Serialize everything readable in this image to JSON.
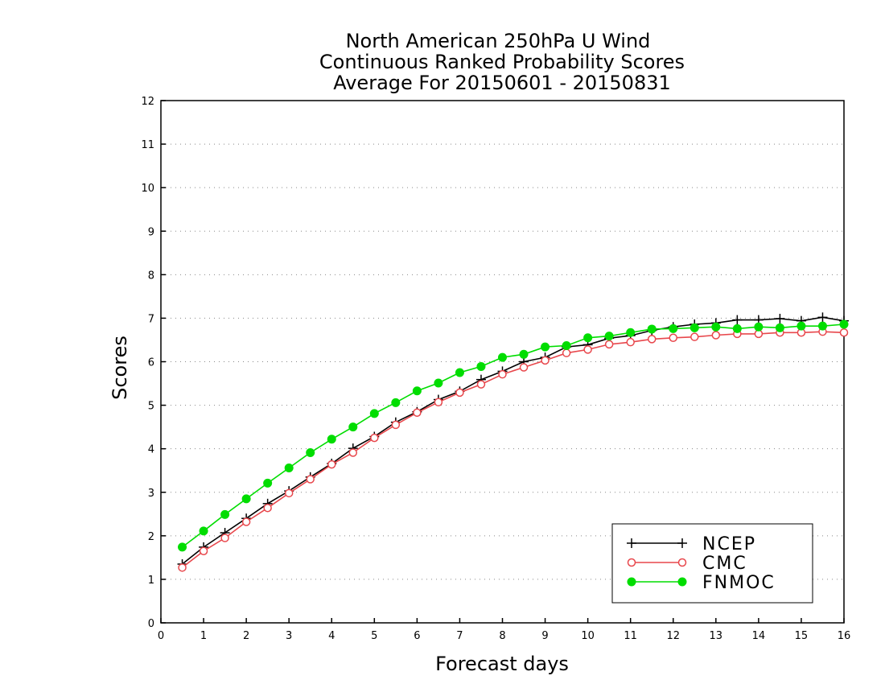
{
  "chart_data": {
    "type": "line",
    "title": [
      "North American 250hPa U Wind",
      "Continuous Ranked Probability Scores",
      "Average For 20150601 - 20150831"
    ],
    "xlabel": "Forecast days",
    "ylabel": "Scores",
    "xlim": [
      0,
      16
    ],
    "ylim": [
      0,
      12
    ],
    "xticks": [
      "0",
      "1",
      "2",
      "3",
      "4",
      "5",
      "6",
      "7",
      "8",
      "9",
      "10",
      "11",
      "12",
      "13",
      "14",
      "15",
      "16"
    ],
    "yticks": [
      "0",
      "1",
      "2",
      "3",
      "4",
      "5",
      "6",
      "7",
      "8",
      "9",
      "10",
      "11",
      "12"
    ],
    "grid": true,
    "legend_position": "bottom-right",
    "x": [
      0.5,
      1,
      1.5,
      2,
      2.5,
      3,
      3.5,
      4,
      4.5,
      5,
      5.5,
      6,
      6.5,
      7,
      7.5,
      8,
      8.5,
      9,
      9.5,
      10,
      10.5,
      11,
      11.5,
      12,
      12.5,
      13,
      13.5,
      14,
      14.5,
      15,
      15.5,
      16
    ],
    "series": [
      {
        "name": "NCEP",
        "color": "#000000",
        "marker": "plus",
        "values": [
          1.35,
          1.74,
          2.07,
          2.4,
          2.74,
          3.03,
          3.35,
          3.66,
          4.01,
          4.28,
          4.61,
          4.85,
          5.13,
          5.32,
          5.59,
          5.78,
          6.0,
          6.1,
          6.34,
          6.39,
          6.54,
          6.6,
          6.72,
          6.8,
          6.86,
          6.89,
          6.96,
          6.96,
          6.99,
          6.94,
          7.02,
          6.94
        ]
      },
      {
        "name": "CMC",
        "color": "#e8474c",
        "marker": "open-circle",
        "values": [
          1.27,
          1.65,
          1.95,
          2.32,
          2.64,
          2.98,
          3.3,
          3.64,
          3.91,
          4.25,
          4.55,
          4.83,
          5.07,
          5.29,
          5.48,
          5.71,
          5.87,
          6.03,
          6.2,
          6.28,
          6.4,
          6.45,
          6.52,
          6.55,
          6.57,
          6.61,
          6.64,
          6.64,
          6.67,
          6.67,
          6.69,
          6.67
        ]
      },
      {
        "name": "FNMOC",
        "color": "#00dd00",
        "marker": "filled-circle",
        "values": [
          1.74,
          2.11,
          2.49,
          2.85,
          3.21,
          3.56,
          3.91,
          4.22,
          4.5,
          4.81,
          5.06,
          5.33,
          5.51,
          5.75,
          5.89,
          6.1,
          6.17,
          6.34,
          6.37,
          6.55,
          6.59,
          6.67,
          6.75,
          6.76,
          6.78,
          6.8,
          6.76,
          6.8,
          6.78,
          6.82,
          6.82,
          6.86
        ]
      }
    ]
  }
}
